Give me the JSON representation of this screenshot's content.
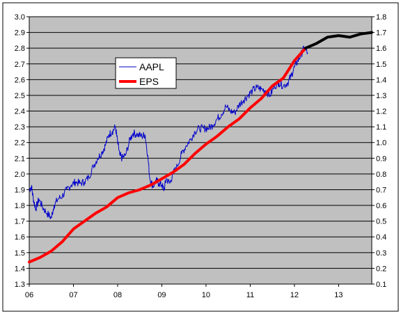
{
  "chart_data": {
    "type": "line",
    "title": "",
    "xlabel": "",
    "ylabel": "",
    "ylim_left": [
      1.3,
      3.0
    ],
    "ylim_right": [
      0.1,
      1.8
    ],
    "yticks_left": [
      "1.3",
      "1.4",
      "1.5",
      "1.6",
      "1.7",
      "1.8",
      "1.9",
      "2.0",
      "2.1",
      "2.2",
      "2.3",
      "2.4",
      "2.5",
      "2.6",
      "2.7",
      "2.8",
      "2.9",
      "3.0"
    ],
    "yticks_right": [
      "0.1",
      "0.2",
      "0.3",
      "0.4",
      "0.5",
      "0.6",
      "0.7",
      "0.8",
      "0.9",
      "1.0",
      "1.1",
      "1.2",
      "1.3",
      "1.4",
      "1.5",
      "1.6",
      "1.7",
      "1.8"
    ],
    "xlim": [
      2006,
      2013.75
    ],
    "xticks": [
      {
        "value": 2006,
        "label": "06"
      },
      {
        "value": 2007,
        "label": "07"
      },
      {
        "value": 2008,
        "label": "08"
      },
      {
        "value": 2009,
        "label": "09"
      },
      {
        "value": 2010,
        "label": "10"
      },
      {
        "value": 2011,
        "label": "11"
      },
      {
        "value": 2012,
        "label": "12"
      },
      {
        "value": 2013,
        "label": "13"
      }
    ],
    "grid": true,
    "legend": "upper-left-inside",
    "plot_background": "#c0c0c0",
    "series": [
      {
        "name": "AAPL",
        "axis": "left",
        "color": "#0000cc",
        "noisy": true,
        "points": [
          [
            2006.0,
            1.9
          ],
          [
            2006.05,
            1.92
          ],
          [
            2006.1,
            1.83
          ],
          [
            2006.15,
            1.78
          ],
          [
            2006.22,
            1.84
          ],
          [
            2006.3,
            1.79
          ],
          [
            2006.4,
            1.75
          ],
          [
            2006.5,
            1.72
          ],
          [
            2006.56,
            1.8
          ],
          [
            2006.65,
            1.84
          ],
          [
            2006.75,
            1.86
          ],
          [
            2006.85,
            1.9
          ],
          [
            2006.95,
            1.93
          ],
          [
            2007.05,
            1.95
          ],
          [
            2007.15,
            1.94
          ],
          [
            2007.25,
            1.95
          ],
          [
            2007.35,
            1.98
          ],
          [
            2007.45,
            2.05
          ],
          [
            2007.55,
            2.1
          ],
          [
            2007.65,
            2.14
          ],
          [
            2007.72,
            2.18
          ],
          [
            2007.8,
            2.25
          ],
          [
            2007.88,
            2.27
          ],
          [
            2007.95,
            2.3
          ],
          [
            2008.0,
            2.2
          ],
          [
            2008.05,
            2.12
          ],
          [
            2008.1,
            2.1
          ],
          [
            2008.18,
            2.12
          ],
          [
            2008.28,
            2.22
          ],
          [
            2008.35,
            2.26
          ],
          [
            2008.45,
            2.25
          ],
          [
            2008.55,
            2.24
          ],
          [
            2008.62,
            2.25
          ],
          [
            2008.68,
            2.12
          ],
          [
            2008.73,
            1.97
          ],
          [
            2008.8,
            1.92
          ],
          [
            2008.87,
            1.96
          ],
          [
            2008.93,
            1.94
          ],
          [
            2009.0,
            1.93
          ],
          [
            2009.05,
            1.9
          ],
          [
            2009.1,
            1.97
          ],
          [
            2009.18,
            1.94
          ],
          [
            2009.25,
            2.0
          ],
          [
            2009.35,
            2.05
          ],
          [
            2009.45,
            2.13
          ],
          [
            2009.55,
            2.18
          ],
          [
            2009.65,
            2.22
          ],
          [
            2009.75,
            2.27
          ],
          [
            2009.85,
            2.29
          ],
          [
            2009.95,
            2.29
          ],
          [
            2010.05,
            2.29
          ],
          [
            2010.15,
            2.31
          ],
          [
            2010.25,
            2.35
          ],
          [
            2010.35,
            2.38
          ],
          [
            2010.45,
            2.43
          ],
          [
            2010.55,
            2.4
          ],
          [
            2010.65,
            2.39
          ],
          [
            2010.75,
            2.44
          ],
          [
            2010.85,
            2.47
          ],
          [
            2010.95,
            2.5
          ],
          [
            2011.05,
            2.53
          ],
          [
            2011.15,
            2.55
          ],
          [
            2011.25,
            2.54
          ],
          [
            2011.35,
            2.53
          ],
          [
            2011.45,
            2.5
          ],
          [
            2011.55,
            2.56
          ],
          [
            2011.65,
            2.58
          ],
          [
            2011.75,
            2.56
          ],
          [
            2011.85,
            2.58
          ],
          [
            2011.92,
            2.62
          ],
          [
            2012.0,
            2.68
          ],
          [
            2012.08,
            2.72
          ],
          [
            2012.15,
            2.76
          ],
          [
            2012.22,
            2.8
          ],
          [
            2012.3,
            2.77
          ]
        ]
      },
      {
        "name": "EPS",
        "axis": "right",
        "color": "#ff0000",
        "points": [
          [
            2006.0,
            0.24
          ],
          [
            2006.25,
            0.27
          ],
          [
            2006.5,
            0.31
          ],
          [
            2006.75,
            0.37
          ],
          [
            2007.0,
            0.45
          ],
          [
            2007.25,
            0.5
          ],
          [
            2007.5,
            0.55
          ],
          [
            2007.75,
            0.59
          ],
          [
            2008.0,
            0.65
          ],
          [
            2008.25,
            0.68
          ],
          [
            2008.5,
            0.7
          ],
          [
            2008.75,
            0.73
          ],
          [
            2009.0,
            0.77
          ],
          [
            2009.25,
            0.81
          ],
          [
            2009.5,
            0.86
          ],
          [
            2009.75,
            0.93
          ],
          [
            2010.0,
            0.99
          ],
          [
            2010.25,
            1.04
          ],
          [
            2010.5,
            1.1
          ],
          [
            2010.75,
            1.15
          ],
          [
            2011.0,
            1.22
          ],
          [
            2011.25,
            1.28
          ],
          [
            2011.5,
            1.36
          ],
          [
            2011.75,
            1.41
          ],
          [
            2012.0,
            1.52
          ],
          [
            2012.25,
            1.6
          ]
        ]
      },
      {
        "name": "",
        "axis": "right",
        "color": "#000000",
        "points": [
          [
            2012.25,
            1.6
          ],
          [
            2012.5,
            1.63
          ],
          [
            2012.75,
            1.67
          ],
          [
            2013.0,
            1.68
          ],
          [
            2013.25,
            1.67
          ],
          [
            2013.5,
            1.69
          ],
          [
            2013.75,
            1.7
          ]
        ]
      }
    ]
  }
}
